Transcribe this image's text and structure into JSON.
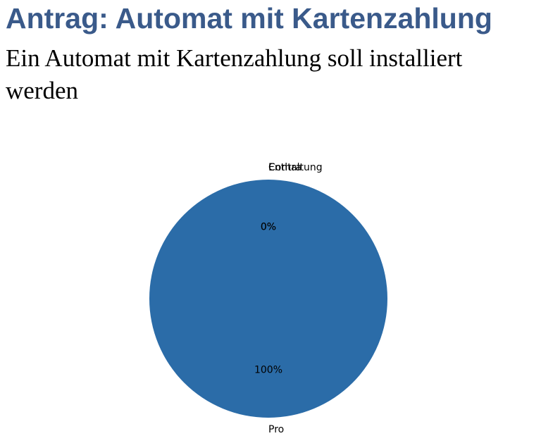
{
  "slide": {
    "title": "Antrag: Automat mit Kartenzahlung",
    "subtitle": "Ein Automat mit Kartenzahlung soll installiert werden"
  },
  "colors": {
    "title": "#3a5a8a",
    "pro": "#2b6ca8",
    "contra": "#ff7f0e",
    "enthaltung": "#2ca02c"
  },
  "chart_data": {
    "type": "pie",
    "title": "",
    "categories": [
      "Pro",
      "Contra",
      "Enthaltung"
    ],
    "values": [
      100,
      0,
      0
    ],
    "value_labels": [
      "100%",
      "0%",
      "0%"
    ],
    "legend": "none"
  }
}
